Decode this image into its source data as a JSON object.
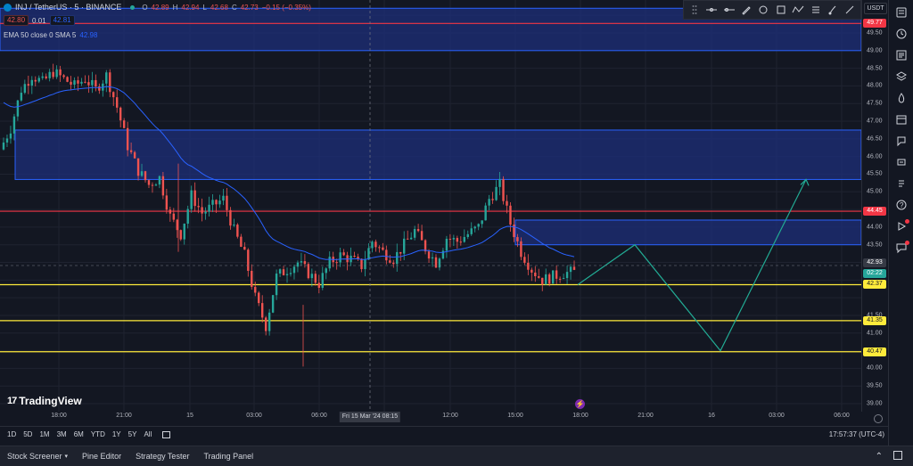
{
  "legend": {
    "symbol": "INJ / TetherUS · 5 · BINANCE",
    "ohlc_o_label": "O",
    "ohlc_o": "42.89",
    "ohlc_h_label": "H",
    "ohlc_h": "42.94",
    "ohlc_l_label": "L",
    "ohlc_l": "42.68",
    "ohlc_c_label": "C",
    "ohlc_c": "42.73",
    "change": "−0.15 (−0.35%)",
    "bid": "42.80",
    "spread": "0.01",
    "ask": "42.81",
    "indicator_label": "EMA 50 close 0 SMA 5",
    "indicator_value": "42.98"
  },
  "currency": "USDT",
  "price_axis": {
    "ticks": [
      "49.50",
      "49.00",
      "48.50",
      "48.00",
      "47.50",
      "47.00",
      "46.50",
      "46.00",
      "45.50",
      "45.00",
      "44.00",
      "43.50",
      "41.50",
      "41.00",
      "40.50",
      "40.00",
      "39.50",
      "39.00"
    ],
    "tags": {
      "top_red": "49.77",
      "red_line": "44.45",
      "last_price": "42.93",
      "countdown": "02:22",
      "yellow1": "42.37",
      "yellow2": "41.35",
      "yellow3": "40.47"
    }
  },
  "time_axis": {
    "labels": [
      "18:00",
      "21:00",
      "15",
      "03:00",
      "06:00",
      "12:00",
      "15:00",
      "18:00",
      "21:00",
      "16",
      "03:00",
      "06:00"
    ],
    "crosshair": "Fri 15 Mar '24  08:15"
  },
  "watermark": "TradingView",
  "ranges": [
    "1D",
    "5D",
    "1M",
    "3M",
    "6M",
    "YTD",
    "1Y",
    "5Y",
    "All"
  ],
  "clock": "17:57:37 (UTC-4)",
  "bottom_tabs": [
    "Stock Screener",
    "Pine Editor",
    "Strategy Tester",
    "Trading Panel"
  ],
  "colors": {
    "bg": "#131722",
    "up": "#26a69a",
    "down": "#ef5350",
    "zone": "#1e2f7a",
    "zone_border": "#2962ff",
    "red_line": "#f23645",
    "yellow": "#ffeb3b",
    "projection": "#22ab94",
    "ema": "#2962ff"
  },
  "chart_data": {
    "type": "candlestick",
    "ema_label": "EMA 50 close 0 SMA 5",
    "ylim": [
      38.8,
      50.2
    ],
    "x_ticks": [
      "18:00",
      "21:00",
      "15",
      "03:00",
      "06:00",
      "12:00",
      "15:00",
      "18:00",
      "21:00",
      "16",
      "03:00",
      "06:00"
    ],
    "candles_approx_close": [
      46.8,
      47.9,
      48.3,
      48.1,
      48.4,
      48.2,
      48.0,
      48.2,
      47.9,
      48.3,
      47.4,
      46.3,
      45.6,
      45.2,
      45.4,
      44.3,
      43.8,
      44.9,
      44.4,
      44.6,
      44.8,
      43.9,
      43.2,
      42.0,
      41.2,
      42.6,
      42.8,
      43.0,
      42.7,
      42.4,
      43.0,
      43.2,
      43.1,
      42.9,
      43.6,
      43.3,
      43.1,
      43.5,
      43.9,
      43.4,
      43.0,
      43.7,
      43.6,
      43.8,
      44.0,
      44.8,
      45.2,
      44.1,
      43.3,
      42.8,
      42.5,
      42.6,
      42.7,
      42.73
    ],
    "horizontal_levels": [
      49.77,
      44.45,
      42.37,
      41.35,
      40.47
    ],
    "zones": [
      [
        49.0,
        50.2
      ],
      [
        45.35,
        46.75
      ],
      [
        43.5,
        44.2
      ]
    ],
    "projection_path": [
      42.37,
      43.5,
      40.5,
      45.35
    ]
  }
}
